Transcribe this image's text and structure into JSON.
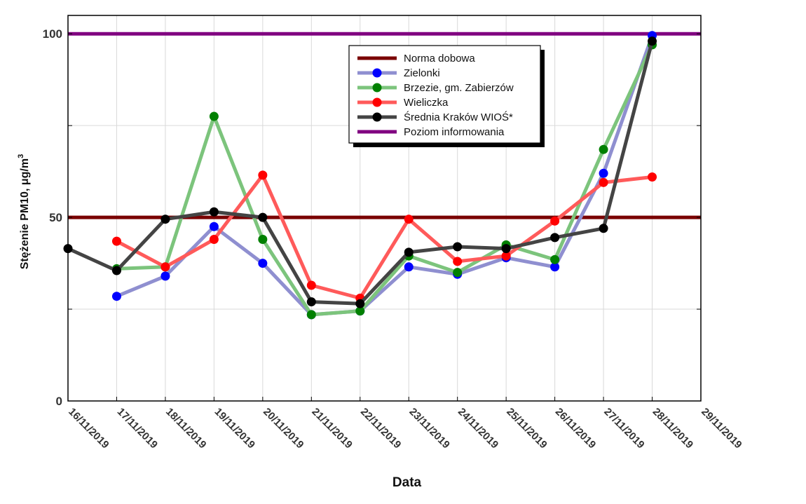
{
  "chart_data": {
    "type": "line",
    "xlabel": "Data",
    "ylabel": "Stężenie PM10, μg/m",
    "ylabel_superscript": "3",
    "ylim": [
      0,
      105
    ],
    "yticks": [
      0,
      50,
      100
    ],
    "ytick_labels": [
      "0",
      "50",
      "100"
    ],
    "categories": [
      "16/11/2019",
      "17/11/2019",
      "18/11/2019",
      "19/11/2019",
      "20/11/2019",
      "21/11/2019",
      "22/11/2019",
      "23/11/2019",
      "24/11/2019",
      "25/11/2019",
      "26/11/2019",
      "27/11/2019",
      "28/11/2019",
      "29/11/2019"
    ],
    "grid": true,
    "legend_position": "top-center",
    "series": [
      {
        "name": "Norma dobowa",
        "kind": "hline",
        "value": 50,
        "color": "#7a0000",
        "markers": false
      },
      {
        "name": "Zielonki",
        "color": "#8f8fd0",
        "marker_color": "#0000ff",
        "markers": true,
        "values": [
          null,
          28.5,
          34,
          47.5,
          37.5,
          23.5,
          24.5,
          36.5,
          34.5,
          39,
          36.5,
          62,
          99.5,
          null
        ]
      },
      {
        "name": "Brzezie, gm. Zabierzów",
        "color": "#7cc47c",
        "marker_color": "#008000",
        "markers": true,
        "values": [
          null,
          36,
          36.5,
          77.5,
          44,
          23.5,
          24.5,
          39.5,
          35,
          42.5,
          38.5,
          68.5,
          97,
          null
        ]
      },
      {
        "name": "Wieliczka",
        "color": "#ff5a5a",
        "marker_color": "#ff0000",
        "markers": true,
        "values": [
          null,
          43.5,
          36.5,
          44,
          61.5,
          31.5,
          28,
          49.5,
          38,
          39.5,
          49,
          59.5,
          61,
          null
        ]
      },
      {
        "name": "Średnia Kraków WIOŚ*",
        "color": "#444444",
        "marker_color": "#000000",
        "markers": true,
        "values": [
          41.5,
          35.5,
          49.5,
          51.5,
          50,
          27,
          26.5,
          40.5,
          42,
          41.5,
          44.5,
          47,
          98,
          null
        ]
      },
      {
        "name": "Poziom informowania",
        "kind": "hline",
        "value": 100,
        "color": "#800080",
        "markers": false
      }
    ]
  }
}
